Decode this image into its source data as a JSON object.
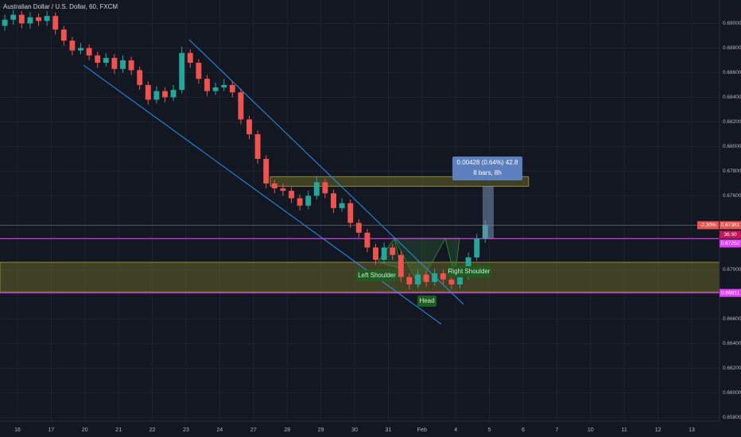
{
  "chart_data": {
    "type": "candlestick",
    "title": "Australian Dollar / U.S. Dollar, 60, FXCM",
    "x": [
      -0.375,
      -0.125,
      0.125,
      0.375,
      0.625,
      0.875,
      1.125,
      1.375,
      1.625,
      1.875,
      2.125,
      2.375,
      2.625,
      2.875,
      3.125,
      3.375,
      3.625,
      3.875,
      4.125,
      4.375,
      4.625,
      4.875,
      5.125,
      5.375,
      5.625,
      5.875,
      6.125,
      6.375,
      6.625,
      6.875,
      7.125,
      7.375,
      7.625,
      7.875,
      8.125,
      8.375,
      8.625,
      8.875,
      9.125,
      9.375,
      9.625,
      9.875,
      10.125,
      10.375,
      10.625,
      10.875,
      11.125,
      11.375,
      11.625,
      11.875,
      12.125,
      12.375,
      12.625,
      12.875,
      13.125,
      13.375,
      13.625,
      13.875
    ],
    "open": [
      0.6898,
      0.6903,
      0.6907,
      0.69,
      0.6905,
      0.6902,
      0.6906,
      0.6895,
      0.6886,
      0.6878,
      0.688,
      0.6874,
      0.6868,
      0.6872,
      0.6863,
      0.687,
      0.6862,
      0.685,
      0.6838,
      0.6845,
      0.684,
      0.6846,
      0.6876,
      0.6868,
      0.6855,
      0.6845,
      0.6848,
      0.685,
      0.6844,
      0.6822,
      0.681,
      0.679,
      0.677,
      0.6766,
      0.6764,
      0.6758,
      0.6752,
      0.676,
      0.6771,
      0.6762,
      0.675,
      0.6754,
      0.6738,
      0.673,
      0.6718,
      0.6708,
      0.6718,
      0.6712,
      0.6694,
      0.6688,
      0.6696,
      0.669,
      0.6697,
      0.6692,
      0.6688,
      0.6695,
      0.671,
      0.6725
    ],
    "high": [
      0.6907,
      0.6911,
      0.691,
      0.6909,
      0.6908,
      0.691,
      0.6909,
      0.6898,
      0.6889,
      0.6884,
      0.6883,
      0.6877,
      0.6876,
      0.6875,
      0.6874,
      0.6873,
      0.6865,
      0.6853,
      0.6849,
      0.6848,
      0.685,
      0.6881,
      0.6879,
      0.6871,
      0.6858,
      0.6852,
      0.6855,
      0.6853,
      0.6847,
      0.6825,
      0.6813,
      0.6793,
      0.6773,
      0.677,
      0.6767,
      0.6761,
      0.6764,
      0.6776,
      0.6774,
      0.6765,
      0.6758,
      0.6757,
      0.6741,
      0.6733,
      0.6721,
      0.6722,
      0.6721,
      0.6715,
      0.6697,
      0.67,
      0.6699,
      0.6701,
      0.67,
      0.6695,
      0.6699,
      0.6714,
      0.6729,
      0.674
    ],
    "low": [
      0.6894,
      0.6899,
      0.6896,
      0.6896,
      0.6898,
      0.6898,
      0.6891,
      0.6882,
      0.6874,
      0.6875,
      0.687,
      0.6864,
      0.6865,
      0.6859,
      0.686,
      0.6858,
      0.6846,
      0.6834,
      0.6835,
      0.6836,
      0.6837,
      0.6843,
      0.6864,
      0.6851,
      0.6841,
      0.6842,
      0.6845,
      0.684,
      0.6818,
      0.6806,
      0.6786,
      0.6766,
      0.6762,
      0.676,
      0.6754,
      0.6748,
      0.6749,
      0.6757,
      0.6758,
      0.6746,
      0.6747,
      0.6734,
      0.6726,
      0.6714,
      0.6704,
      0.6705,
      0.6708,
      0.669,
      0.6684,
      0.6685,
      0.6686,
      0.6687,
      0.6688,
      0.6684,
      0.6685,
      0.6692,
      0.6707,
      0.6722
    ],
    "close": [
      0.6903,
      0.6907,
      0.69,
      0.6905,
      0.6902,
      0.6906,
      0.6895,
      0.6886,
      0.6878,
      0.688,
      0.6874,
      0.6868,
      0.6872,
      0.6863,
      0.687,
      0.6862,
      0.685,
      0.6838,
      0.6845,
      0.684,
      0.6846,
      0.6876,
      0.6868,
      0.6855,
      0.6845,
      0.6848,
      0.685,
      0.6844,
      0.6822,
      0.681,
      0.679,
      0.677,
      0.6766,
      0.6764,
      0.6758,
      0.6752,
      0.676,
      0.6771,
      0.6762,
      0.675,
      0.6754,
      0.6738,
      0.673,
      0.6718,
      0.6708,
      0.6718,
      0.6712,
      0.6694,
      0.6688,
      0.6696,
      0.669,
      0.6697,
      0.6692,
      0.6688,
      0.6695,
      0.671,
      0.6725,
      0.6736
    ],
    "up_color": "#26a69a",
    "down_color": "#ef5350",
    "xlim": [
      -0.519,
      20.825
    ],
    "ylim": [
      0.6577,
      0.6919
    ],
    "xticks": [
      {
        "value": 0,
        "label": "16"
      },
      {
        "value": 1,
        "label": "17"
      },
      {
        "value": 2,
        "label": "20"
      },
      {
        "value": 3,
        "label": "21"
      },
      {
        "value": 4,
        "label": "22"
      },
      {
        "value": 5,
        "label": "23"
      },
      {
        "value": 6,
        "label": "24"
      },
      {
        "value": 7,
        "label": "27"
      },
      {
        "value": 8,
        "label": "28"
      },
      {
        "value": 9,
        "label": "29"
      },
      {
        "value": 10,
        "label": "30"
      },
      {
        "value": 11,
        "label": "31"
      },
      {
        "value": 12,
        "label": "Feb"
      },
      {
        "value": 13,
        "label": "4"
      },
      {
        "value": 14,
        "label": "5"
      },
      {
        "value": 15,
        "label": "6"
      },
      {
        "value": 16,
        "label": "7"
      },
      {
        "value": 17,
        "label": "10"
      },
      {
        "value": 18,
        "label": "11"
      },
      {
        "value": 19,
        "label": "12"
      },
      {
        "value": 20,
        "label": "13"
      }
    ],
    "yticks": [
      {
        "value": 0.69,
        "label": "0.69000"
      },
      {
        "value": 0.688,
        "label": "0.68800"
      },
      {
        "value": 0.686,
        "label": "0.68600"
      },
      {
        "value": 0.684,
        "label": "0.68400"
      },
      {
        "value": 0.682,
        "label": "0.68200"
      },
      {
        "value": 0.68,
        "label": "0.68000"
      },
      {
        "value": 0.678,
        "label": "0.67800"
      },
      {
        "value": 0.676,
        "label": "0.67600"
      },
      {
        "value": 0.67,
        "label": "0.67000"
      },
      {
        "value": 0.666,
        "label": "0.66600"
      },
      {
        "value": 0.664,
        "label": "0.66400"
      },
      {
        "value": 0.662,
        "label": "0.66200"
      },
      {
        "value": 0.66,
        "label": "0.66000"
      },
      {
        "value": 0.658,
        "label": "0.65800"
      }
    ],
    "grid": true,
    "zones": [
      {
        "low": 0.6682,
        "high": 0.6706
      },
      {
        "low": 0.67677,
        "high": 0.67755,
        "from": 7.5,
        "to": 15.16
      }
    ],
    "current_price": {
      "value": 0.67361,
      "label": "0.67361",
      "change": "-2.30%",
      "countdown": "36:30"
    },
    "levels": [
      {
        "value": 0.67252,
        "label": "0.67252"
      },
      {
        "value": 0.66811,
        "label": "0.66811"
      }
    ],
    "measure": {
      "line1": "0.00428 (0.64%) 42.8",
      "line2": "8 bars, 8h"
    },
    "annotations": [
      "Left Shoulder",
      "Head",
      "Right Shoulder"
    ]
  }
}
